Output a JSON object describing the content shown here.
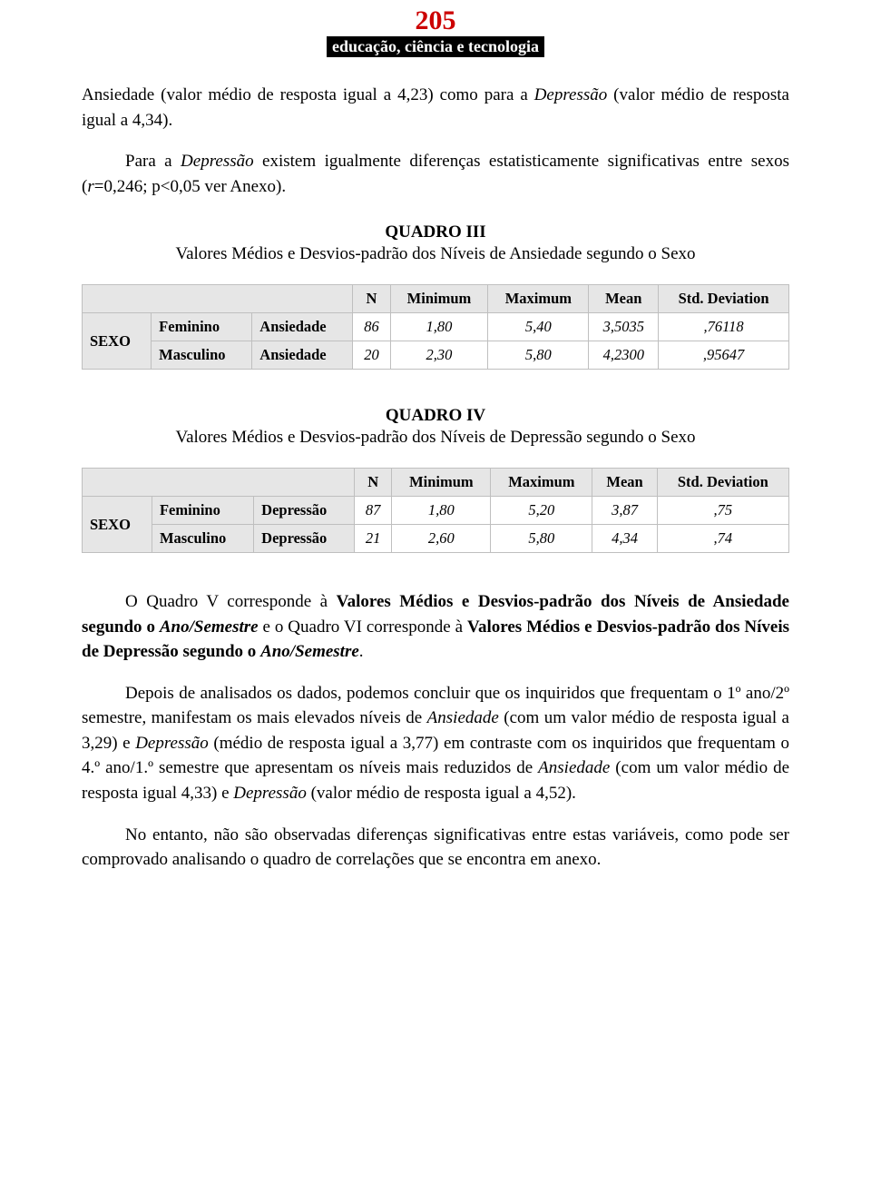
{
  "header": {
    "page_number": "205",
    "subtitle": "educação, ciência e tecnologia",
    "page_number_color": "#cc0000",
    "sub_bg": "#000000",
    "sub_fg": "#ffffff"
  },
  "para1_a": "Ansiedade (valor médio de resposta igual a 4,23) como para a ",
  "para1_b": "Depressão",
  "para1_c": " (valor médio de resposta igual a 4,34).",
  "para2_a": "Para a ",
  "para2_b": "Depressão",
  "para2_c": " existem igualmente diferenças estatisticamente significativas entre sexos (",
  "para2_d": "r",
  "para2_e": "=0,246; p<0,05 ver Anexo).",
  "quadro3": {
    "title": "QUADRO III",
    "subtitle": "Valores Médios e Desvios-padrão dos Níveis de Ansiedade segundo o Sexo",
    "type": "table",
    "row_label": "SEXO",
    "columns": [
      "",
      "",
      "N",
      "Minimum",
      "Maximum",
      "Mean",
      "Std. Deviation"
    ],
    "rows": [
      {
        "group": "Feminino",
        "var": "Ansiedade",
        "n": "86",
        "min": "1,80",
        "max": "5,40",
        "mean": "3,5035",
        "sd": ",76118",
        "italic": true
      },
      {
        "group": "Masculino",
        "var": "Ansiedade",
        "n": "20",
        "min": "2,30",
        "max": "5,80",
        "mean": "4,2300",
        "sd": ",95647",
        "italic": true
      }
    ],
    "header_bg": "#e6e6e6",
    "border_color": "#bfbfbf",
    "fontsize": 16.5
  },
  "quadro4": {
    "title": "QUADRO IV",
    "subtitle": "Valores Médios e Desvios-padrão dos Níveis de Depressão segundo o Sexo",
    "type": "table",
    "row_label": "SEXO",
    "columns": [
      "",
      "",
      "N",
      "Minimum",
      "Maximum",
      "Mean",
      "Std. Deviation"
    ],
    "rows": [
      {
        "group": "Feminino",
        "var": "Depressão",
        "n": "87",
        "min": "1,80",
        "max": "5,20",
        "mean": "3,87",
        "sd": ",75",
        "italic": true
      },
      {
        "group": "Masculino",
        "var": "Depressão",
        "n": "21",
        "min": "2,60",
        "max": "5,80",
        "mean": "4,34",
        "sd": ",74",
        "italic": true
      }
    ],
    "header_bg": "#e6e6e6",
    "border_color": "#bfbfbf",
    "fontsize": 16.5
  },
  "para3_a": "O Quadro V corresponde à ",
  "para3_b": "Valores Médios e Desvios-padrão dos Níveis de Ansiedade segundo o ",
  "para3_c": "Ano/Semestre",
  "para3_d": " e o Quadro VI corresponde à ",
  "para3_e": "Valores Médios e Desvios-padrão dos Níveis de Depressão segundo o ",
  "para3_f": "Ano/Semestre",
  "para3_g": ".",
  "para4_a": "Depois de analisados os dados, podemos concluir que os inquiridos que frequentam o 1º ano/2º semestre, manifestam os mais elevados níveis de ",
  "para4_b": "Ansiedade",
  "para4_c": " (com um valor médio de resposta igual a 3,29) e ",
  "para4_d": "Depressão",
  "para4_e": " (médio de resposta igual a 3,77) em contraste com os inquiridos que frequentam o 4.º ano/1.º semestre que apresentam os níveis mais reduzidos de ",
  "para4_f": "Ansiedade",
  "para4_g": " (com um valor médio de resposta igual 4,33) e ",
  "para4_h": "Depressão",
  "para4_i": " (valor médio de resposta igual a 4,52).",
  "para5": "No entanto, não são observadas diferenças significativas entre estas variáveis, como pode ser comprovado analisando o quadro de correlações que se encontra em anexo."
}
